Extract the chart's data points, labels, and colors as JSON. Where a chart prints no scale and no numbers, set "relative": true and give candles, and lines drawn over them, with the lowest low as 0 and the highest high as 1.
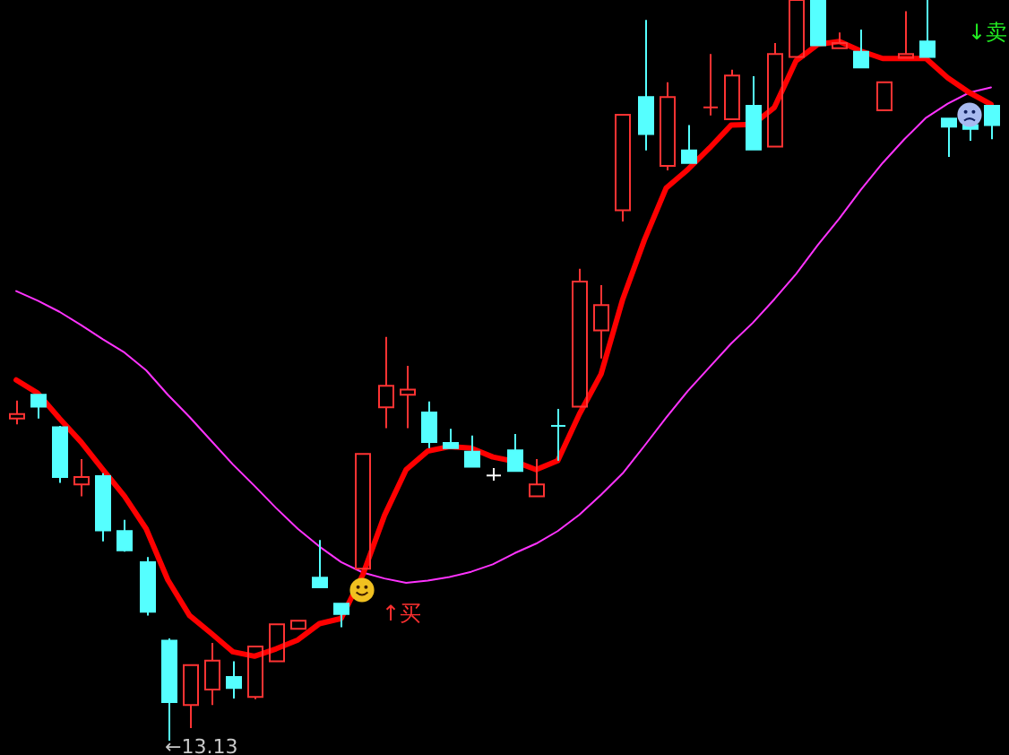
{
  "chart_data": {
    "type": "candlestick",
    "relative": true,
    "categories": [
      null,
      null,
      null,
      null,
      null,
      null,
      null,
      null,
      null,
      null,
      null,
      null,
      null,
      null,
      null,
      null,
      null,
      null,
      null,
      null,
      null,
      null,
      null,
      null,
      null,
      null,
      null,
      null,
      null,
      null,
      null,
      null,
      null,
      null,
      null,
      null,
      null,
      null,
      null,
      null,
      null,
      null,
      null,
      null,
      null,
      null
    ],
    "ohlc": [
      [
        0.435,
        0.459,
        0.427,
        0.441
      ],
      [
        0.467,
        0.467,
        0.435,
        0.451
      ],
      [
        0.423,
        0.425,
        0.348,
        0.356
      ],
      [
        0.346,
        0.38,
        0.33,
        0.356
      ],
      [
        0.357,
        0.361,
        0.269,
        0.284
      ],
      [
        0.283,
        0.298,
        0.255,
        0.257
      ],
      [
        0.241,
        0.248,
        0.169,
        0.174
      ],
      [
        0.135,
        0.138,
        0,
        0.052
      ],
      [
        0.048,
        0.102,
        0.017,
        0.102
      ],
      [
        0.069,
        0.132,
        0.048,
        0.108
      ],
      [
        0.086,
        0.107,
        0.057,
        0.071
      ],
      [
        0.059,
        0.127,
        0.056,
        0.127
      ],
      [
        0.107,
        0.157,
        0.107,
        0.157
      ],
      [
        0.151,
        0.162,
        0.151,
        0.162
      ],
      [
        0.22,
        0.271,
        0.207,
        0.207
      ],
      [
        0.185,
        0.185,
        0.153,
        0.171
      ],
      [
        0.232,
        0.387,
        0.232,
        0.387
      ],
      [
        0.45,
        0.545,
        0.422,
        0.479
      ],
      [
        0.467,
        0.506,
        0.422,
        0.474
      ],
      [
        0.443,
        0.458,
        0.395,
        0.403
      ],
      [
        0.402,
        0.421,
        0.395,
        0.395
      ],
      [
        0.39,
        0.412,
        0.37,
        0.37
      ],
      [
        0.358,
        0.368,
        0.351,
        0.358
      ],
      [
        0.392,
        0.414,
        0.364,
        0.364
      ],
      [
        0.33,
        0.38,
        0.33,
        0.346
      ],
      [
        0.425,
        0.448,
        0.378,
        0.425
      ],
      [
        0.451,
        0.637,
        0.451,
        0.62
      ],
      [
        0.554,
        0.615,
        0.516,
        0.588
      ],
      [
        0.716,
        0.845,
        0.701,
        0.845
      ],
      [
        0.869,
        0.973,
        0.797,
        0.819
      ],
      [
        0.776,
        0.889,
        0.77,
        0.869
      ],
      [
        0.797,
        0.831,
        0.78,
        0.78
      ],
      [
        0.855,
        0.927,
        0.844,
        0.855
      ],
      [
        0.839,
        0.906,
        0.839,
        0.898
      ],
      [
        0.857,
        0.897,
        0.798,
        0.798
      ],
      [
        0.802,
        0.942,
        0.802,
        0.927
      ],
      [
        0.923,
        1,
        0.923,
        1
      ],
      [
        1,
        1,
        0.939,
        0.939
      ],
      [
        0.935,
        0.956,
        0.935,
        0.942
      ],
      [
        0.93,
        0.96,
        0.909,
        0.909
      ],
      [
        0.851,
        0.889,
        0.851,
        0.889
      ],
      [
        0.922,
        0.985,
        0.922,
        0.927
      ],
      [
        0.944,
        1,
        0.923,
        0.923
      ],
      [
        0.84,
        0.84,
        0.788,
        0.829
      ],
      [
        0.831,
        0.831,
        0.81,
        0.826
      ],
      [
        0.857,
        0.857,
        0.812,
        0.831
      ]
    ],
    "colors": [
      "#ff3333",
      "#55ffff",
      "#55ffff",
      "#ff3333",
      "#55ffff",
      "#55ffff",
      "#55ffff",
      "#55ffff",
      "#ff3333",
      "#ff3333",
      "#55ffff",
      "#ff3333",
      "#ff3333",
      "#ff3333",
      "#55ffff",
      "#55ffff",
      "#ff3333",
      "#ff3333",
      "#ff3333",
      "#55ffff",
      "#55ffff",
      "#55ffff",
      "#ffffff",
      "#55ffff",
      "#ff3333",
      "#55ffff",
      "#ff3333",
      "#ff3333",
      "#ff3333",
      "#55ffff",
      "#ff3333",
      "#55ffff",
      "#ff3333",
      "#ff3333",
      "#55ffff",
      "#ff3333",
      "#ff3333",
      "#55ffff",
      "#ff3333",
      "#55ffff",
      "#ff3333",
      "#ff3333",
      "#55ffff",
      "#55ffff",
      "#55ffff",
      "#55ffff"
    ],
    "series": [
      {
        "type": "line",
        "color": "#ff0000",
        "values": [
          0.487,
          0.469,
          0.435,
          0.403,
          0.366,
          0.33,
          0.286,
          0.217,
          0.169,
          0.145,
          0.12,
          0.114,
          0.124,
          0.136,
          0.158,
          0.165,
          0.224,
          0.304,
          0.366,
          0.391,
          0.397,
          0.395,
          0.383,
          0.377,
          0.366,
          0.378,
          0.441,
          0.495,
          0.596,
          0.676,
          0.746,
          0.771,
          0.8,
          0.831,
          0.832,
          0.855,
          0.918,
          0.94,
          0.944,
          0.931,
          0.921,
          0.921,
          0.921,
          0.895,
          0.875,
          0.859
        ]
      },
      {
        "type": "line",
        "color": "#ff33ff",
        "values": [
          0.607,
          0.594,
          0.579,
          0.561,
          0.542,
          0.524,
          0.5,
          0.467,
          0.437,
          0.405,
          0.373,
          0.344,
          0.314,
          0.286,
          0.262,
          0.241,
          0.227,
          0.219,
          0.213,
          0.216,
          0.221,
          0.228,
          0.238,
          0.253,
          0.266,
          0.283,
          0.305,
          0.332,
          0.361,
          0.398,
          0.436,
          0.472,
          0.504,
          0.536,
          0.564,
          0.596,
          0.63,
          0.669,
          0.705,
          0.744,
          0.78,
          0.812,
          0.841,
          0.86,
          0.875,
          0.882
        ]
      }
    ],
    "legend": false,
    "annotations": [
      "←13.13",
      "↑买",
      "↓卖"
    ]
  }
}
